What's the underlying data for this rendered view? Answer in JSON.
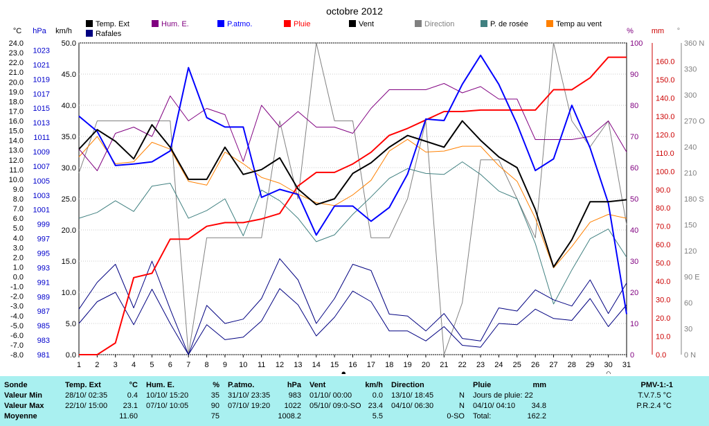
{
  "title": "octobre 2012",
  "legend": [
    {
      "label": "Temp. Ext",
      "color": "#000000",
      "textColor": "#000000"
    },
    {
      "label": "Hum. E.",
      "color": "#800080",
      "textColor": "#800080"
    },
    {
      "label": "P.atmo.",
      "color": "#0000ff",
      "textColor": "#0000ff"
    },
    {
      "label": "Pluie",
      "color": "#ff0000",
      "textColor": "#ff0000"
    },
    {
      "label": "Vent",
      "color": "#000000",
      "textColor": "#000000"
    },
    {
      "label": "Direction",
      "color": "#808080",
      "textColor": "#808080"
    },
    {
      "label": "P. de rosée",
      "color": "#408080",
      "textColor": "#000000"
    },
    {
      "label": "Temp au vent",
      "color": "#ff8000",
      "textColor": "#000000"
    },
    {
      "label": "Rafales",
      "color": "#000080",
      "textColor": "#000000"
    }
  ],
  "axis_units": {
    "temp": "°C",
    "pressure": "hPa",
    "wind": "km/h",
    "humidity": "%",
    "rain": "mm",
    "direction": "°"
  },
  "chart_data": {
    "type": "line",
    "x": [
      1,
      2,
      3,
      4,
      5,
      6,
      7,
      8,
      9,
      10,
      11,
      12,
      13,
      14,
      15,
      16,
      17,
      18,
      19,
      20,
      21,
      22,
      23,
      24,
      25,
      26,
      27,
      28,
      29,
      30,
      31
    ],
    "xlim": [
      1,
      31
    ],
    "axes": {
      "temp": {
        "min": -8,
        "max": 24,
        "ticks": [
          "24.0",
          "23.0",
          "22.0",
          "21.0",
          "20.0",
          "19.0",
          "18.0",
          "17.0",
          "16.0",
          "15.0",
          "14.0",
          "13.0",
          "12.0",
          "11.0",
          "10.0",
          "9.0",
          "8.0",
          "7.0",
          "6.0",
          "5.0",
          "4.0",
          "3.0",
          "2.0",
          "1.0",
          "0.0",
          "-1.0",
          "-2.0",
          "-3.0",
          "-4.0",
          "-5.0",
          "-6.0",
          "-7.0",
          "-8.0"
        ]
      },
      "pressure": {
        "min": 981,
        "max": 1024,
        "ticks": [
          "1023",
          "1021",
          "1019",
          "1017",
          "1015",
          "1013",
          "1011",
          "1009",
          "1007",
          "1005",
          "1003",
          "1001",
          "999",
          "997",
          "995",
          "993",
          "991",
          "989",
          "987",
          "985",
          "983",
          "981"
        ]
      },
      "wind": {
        "min": 0,
        "max": 50,
        "ticks": [
          "50.0",
          "45.0",
          "40.0",
          "35.0",
          "30.0",
          "25.0",
          "20.0",
          "15.0",
          "10.0",
          "5.0",
          "0.0"
        ]
      },
      "humidity": {
        "min": 0,
        "max": 100,
        "ticks": [
          "100",
          "90",
          "80",
          "70",
          "60",
          "50",
          "40",
          "30",
          "20",
          "10",
          "0"
        ]
      },
      "rain": {
        "min": 0,
        "max": 170,
        "ticks": [
          "160.0",
          "150.0",
          "140.0",
          "130.0",
          "120.0",
          "110.0",
          "100.0",
          "90.0",
          "80.0",
          "70.0",
          "60.0",
          "50.0",
          "40.0",
          "30.0",
          "20.0",
          "10.0",
          "0.0"
        ]
      },
      "direction": {
        "min": 0,
        "max": 360,
        "ticks": [
          "360 N",
          "330",
          "300",
          "270 O",
          "240",
          "210",
          "180 S",
          "150",
          "120",
          "90 E",
          "60",
          "30",
          "0 N"
        ]
      }
    },
    "series": [
      {
        "name": "Temp. Ext",
        "axis": "temp",
        "color": "#000000",
        "width": 2,
        "values": [
          13.1,
          15.1,
          13.9,
          12.1,
          15.6,
          13.3,
          10.0,
          10.0,
          13.3,
          10.5,
          11.0,
          12.2,
          9.0,
          7.4,
          8.0,
          10.6,
          11.7,
          13.3,
          14.5,
          13.9,
          13.3,
          16.0,
          14.0,
          12.3,
          11.2,
          6.9,
          1.0,
          3.8,
          7.7,
          7.7,
          7.9
        ]
      },
      {
        "name": "Hum. E.",
        "axis": "humidity",
        "color": "#800080",
        "width": 1,
        "values": [
          66,
          59,
          71,
          73,
          70,
          83,
          75,
          79,
          77,
          62,
          80,
          73,
          78,
          73,
          73,
          71,
          79,
          85,
          85,
          85,
          87,
          84,
          86,
          82,
          82,
          69,
          69,
          69,
          70,
          75,
          65
        ]
      },
      {
        "name": "P.atmo.",
        "axis": "pressure",
        "color": "#0000ff",
        "width": 2,
        "values": [
          1013.9,
          1011.8,
          1007.1,
          1007.3,
          1007.6,
          1009.1,
          1020.6,
          1013.7,
          1012.4,
          1012.4,
          1002.7,
          1003.8,
          1003.1,
          997.5,
          1001.5,
          1001.5,
          999.4,
          1001.3,
          1005.9,
          1013.5,
          1013.3,
          1018.3,
          1022.3,
          1018.3,
          1012.8,
          1006.4,
          1008.0,
          1015.4,
          1009.5,
          1001.9,
          986.6
        ]
      },
      {
        "name": "Pluie",
        "axis": "rain",
        "color": "#ff0000",
        "width": 2,
        "values": [
          0,
          0,
          6.4,
          42,
          44.4,
          63,
          63,
          70,
          72,
          72,
          74,
          77,
          92,
          99.4,
          99.4,
          104,
          110.4,
          119.6,
          123.4,
          128,
          132.6,
          132.6,
          133.4,
          133.4,
          133.4,
          133.4,
          144.5,
          144.5,
          151,
          162.2,
          162.2
        ]
      },
      {
        "name": "Direction",
        "axis": "direction",
        "color": "#808080",
        "width": 1,
        "values": [
          210,
          270,
          270,
          270,
          270,
          270,
          0,
          135,
          135,
          135,
          135,
          270,
          180,
          360,
          270,
          270,
          135,
          135,
          180,
          270,
          0,
          60,
          225,
          225,
          180,
          135,
          360,
          270,
          240,
          270,
          150
        ]
      },
      {
        "name": "P. de rosée",
        "axis": "temp",
        "color": "#408080",
        "width": 1,
        "values": [
          6.0,
          6.6,
          7.8,
          6.7,
          9.3,
          9.6,
          6.0,
          6.8,
          8.0,
          4.2,
          8.9,
          7.8,
          6.0,
          3.6,
          4.3,
          6.4,
          8.2,
          10.1,
          11.1,
          10.6,
          10.5,
          11.8,
          10.5,
          8.8,
          8.0,
          3.4,
          -2.8,
          0.7,
          3.9,
          4.9,
          2.0
        ]
      },
      {
        "name": "Temp au vent",
        "axis": "temp",
        "color": "#ff8000",
        "width": 1,
        "values": [
          12.3,
          14.4,
          11.6,
          11.8,
          13.8,
          13.1,
          9.8,
          9.4,
          12.8,
          11.6,
          10.2,
          9.6,
          8.5,
          7.6,
          7.3,
          8.4,
          9.9,
          12.9,
          14.1,
          12.8,
          12.9,
          13.4,
          13.4,
          11.4,
          9.8,
          6.0,
          0.9,
          3.1,
          5.6,
          6.4,
          6.0
        ]
      },
      {
        "name": "Vent",
        "axis": "wind",
        "color": "#000080",
        "width": 1,
        "values": [
          5.0,
          8.5,
          10.0,
          4.8,
          10.5,
          5.0,
          0.0,
          4.8,
          2.4,
          2.8,
          5.4,
          10.6,
          8.0,
          3.0,
          6.0,
          10.2,
          8.5,
          3.8,
          3.8,
          2.2,
          4.5,
          1.5,
          1.2,
          5.0,
          4.8,
          7.3,
          5.8,
          5.5,
          9.0,
          4.5,
          8.0
        ]
      },
      {
        "name": "Rafales",
        "axis": "wind",
        "color": "#000080",
        "width": 1,
        "values": [
          7.3,
          11.6,
          14.5,
          7.5,
          15.0,
          7.3,
          0.0,
          7.9,
          5.0,
          5.7,
          9.0,
          15.4,
          12.0,
          5.0,
          9.0,
          14.5,
          13.5,
          6.5,
          6.2,
          3.8,
          6.6,
          2.6,
          2.2,
          7.5,
          7.0,
          10.4,
          8.8,
          7.8,
          12.0,
          6.6,
          11.5
        ]
      }
    ],
    "markers": [
      {
        "label": "●",
        "x": 15.5
      },
      {
        "label": "○",
        "x": 30
      }
    ]
  },
  "stats": {
    "sonde": {
      "labels": [
        "Sonde",
        "Valeur Min",
        "Valeur Max",
        "Moyenne"
      ]
    },
    "temp": {
      "title": "Temp. Ext",
      "unit": "°C",
      "min_date": "28/10/ 02:35",
      "min": "0.4",
      "max_date": "22/10/ 15:00",
      "max": "23.1",
      "avg": "11.60"
    },
    "hum": {
      "title": "Hum. E.",
      "unit": "%",
      "min_date": "10/10/ 15:20",
      "min": "35",
      "max_date": "07/10/ 10:05",
      "max": "90",
      "avg": "75"
    },
    "patmo": {
      "title": "P.atmo.",
      "unit": "hPa",
      "min_date": "31/10/ 23:35",
      "min": "983",
      "max_date": "07/10/ 19:20",
      "max": "1022",
      "avg": "1008.2"
    },
    "vent": {
      "title": "Vent",
      "unit": "km/h",
      "min_date": "01/10/ 00:00",
      "min": "0.0",
      "max_date": "05/10/ 09:0-SO",
      "max": "23.4",
      "avg": "5.5"
    },
    "direction": {
      "title": "Direction",
      "min_date": "13/10/ 18:45",
      "min": "N",
      "max_date": "04/10/ 06:30",
      "max": "N",
      "avg": "0-SO"
    },
    "pluie": {
      "title": "Pluie",
      "unit": "mm",
      "line1": "Jours de pluie: 22",
      "max_date": "04/10/ 04:10",
      "max": "34.8",
      "total_label": "Total:",
      "total": "162.2"
    },
    "pmv": {
      "title": "PMV-1:-1",
      "tv": "T.V.7.5 °C",
      "pr": "P.R.2.4 °C"
    }
  }
}
